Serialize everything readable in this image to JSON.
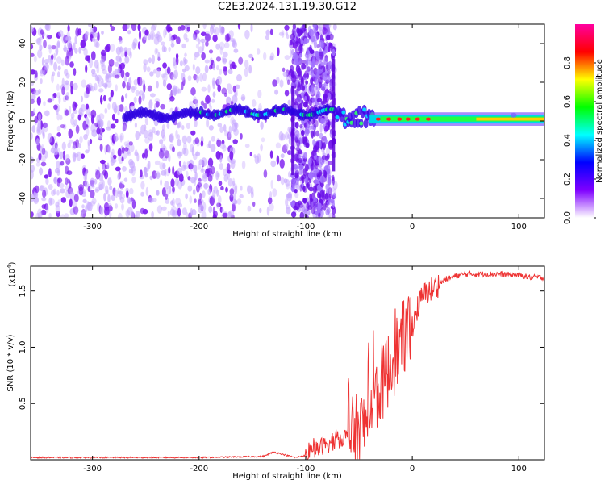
{
  "figure": {
    "title": "C2E3.2024.131.19.30.G12"
  },
  "chart_data": [
    {
      "type": "heatmap",
      "title": "",
      "xlabel": "Height of straight line (km)",
      "ylabel": "Frequency (Hz)",
      "xlim": [
        -358,
        124
      ],
      "ylim": [
        -50,
        50
      ],
      "x_ticks": [
        -300,
        -200,
        -100,
        0,
        100
      ],
      "y_ticks": [
        -40,
        -20,
        0,
        20,
        40
      ],
      "colorbar": {
        "label": "Normalized spectral amplitude",
        "range": [
          0.0,
          1.0
        ],
        "ticks": [
          "0.0",
          "0.2",
          "0.4",
          "0.6",
          "0.8"
        ],
        "colormap": [
          "#ffffff",
          "#7f00ff",
          "#0000ff",
          "#00ffff",
          "#00ff00",
          "#ffff00",
          "#ff0000",
          "#ff00a0"
        ]
      },
      "ridge": {
        "description_values": [
          {
            "x": -260,
            "y": 3,
            "amp": 0.2
          },
          {
            "x": -175,
            "y": 4,
            "amp": 0.35
          },
          {
            "x": -120,
            "y": 5,
            "amp": 0.35
          },
          {
            "x": -60,
            "y": 0,
            "amp": 0.4
          },
          {
            "x": -30,
            "y": 1,
            "amp": 0.6
          },
          {
            "x": 0,
            "y": 1,
            "amp": 0.75
          },
          {
            "x": 60,
            "y": 1,
            "amp": 0.75
          },
          {
            "x": 120,
            "y": 1,
            "amp": 0.8
          }
        ]
      }
    },
    {
      "type": "line",
      "title": "",
      "xlabel": "Height of straight line (km)",
      "ylabel": "SNR (10 * v/v)",
      "y_multiplier": "(x10",
      "y_multiplier_exp": "4",
      "y_multiplier_close": ")",
      "xlim": [
        -358,
        124
      ],
      "ylim": [
        0,
        1.72
      ],
      "x_ticks": [
        -300,
        -200,
        -100,
        0,
        100
      ],
      "y_ticks": [
        "0.5",
        "1.0",
        "1.5"
      ],
      "color": "#ee3333",
      "series": [
        {
          "name": "",
          "x": [
            -358,
            -300,
            -200,
            -140,
            -130,
            -110,
            -95,
            -85,
            -75,
            -65,
            -55,
            -45,
            -40,
            -35,
            -30,
            -25,
            -20,
            -15,
            -10,
            -5,
            0,
            5,
            10,
            15,
            20,
            25,
            30,
            40,
            50,
            60,
            80,
            100,
            110,
            124
          ],
          "y": [
            0.02,
            0.02,
            0.02,
            0.03,
            0.07,
            0.02,
            0.05,
            0.12,
            0.15,
            0.2,
            0.22,
            0.3,
            0.45,
            0.55,
            0.65,
            0.75,
            0.85,
            0.95,
            1.05,
            1.15,
            1.2,
            1.35,
            1.45,
            1.5,
            1.52,
            1.55,
            1.6,
            1.63,
            1.65,
            1.65,
            1.65,
            1.64,
            1.62,
            1.62
          ]
        }
      ]
    }
  ]
}
